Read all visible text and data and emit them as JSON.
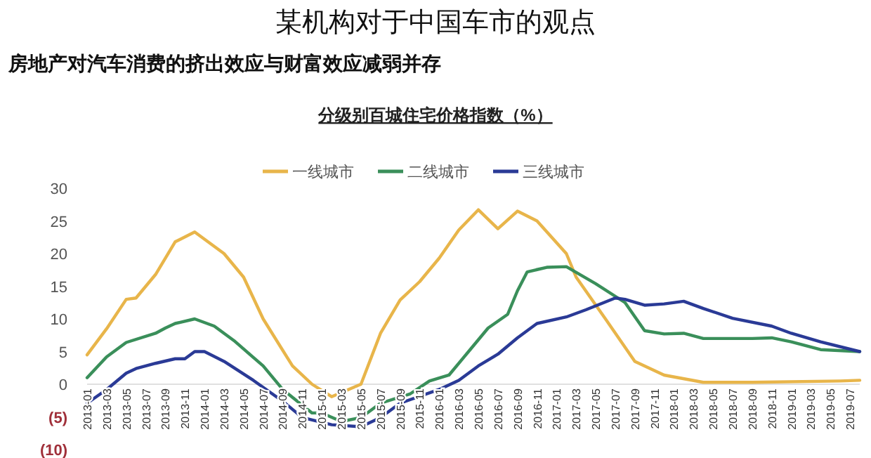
{
  "chart_data": {
    "type": "line",
    "title": "某机构对于中国车市的观点",
    "subtitle": "房地产对汽车消费的挤出效应与财富效应减弱并存",
    "annotations": [
      "分级别百城住宅价格指数（%）"
    ],
    "legend": "top",
    "grid": false,
    "marker": "none",
    "line_style": "solid",
    "xlim": [
      "2013-01",
      "2019-08"
    ],
    "xticks": [
      "2013-01",
      "2013-03",
      "2013-05",
      "2013-07",
      "2013-09",
      "2013-11",
      "2014-01",
      "2014-03",
      "2014-05",
      "2014-07",
      "2014-09",
      "2014-11",
      "2015-01",
      "2015-03",
      "2015-05",
      "2015-07",
      "2015-09",
      "2015-11",
      "2016-01",
      "2016-03",
      "2016-05",
      "2016-07",
      "2016-09",
      "2016-11",
      "2017-01",
      "2017-03",
      "2017-05",
      "2017-07",
      "2017-09",
      "2017-11",
      "2018-01",
      "2018-03",
      "2018-05",
      "2018-07",
      "2018-09",
      "2018-11",
      "2019-01",
      "2019-03",
      "2019-05",
      "2019-07"
    ],
    "ylim": [
      -10,
      30
    ],
    "yticks": [
      {
        "value": -10,
        "label": "(10)"
      },
      {
        "value": -5,
        "label": "(5)"
      },
      0,
      5,
      10,
      15,
      20,
      25,
      30
    ],
    "series": [
      {
        "name": "一线城市",
        "color": "#e8b54a",
        "x": [
          "2013-01",
          "2013-03",
          "2013-05",
          "2013-06",
          "2013-08",
          "2013-10",
          "2013-12",
          "2014-01",
          "2014-03",
          "2014-05",
          "2014-07",
          "2014-10",
          "2014-12",
          "2015-02",
          "2015-05",
          "2015-07",
          "2015-09",
          "2015-11",
          "2016-01",
          "2016-03",
          "2016-05",
          "2016-07",
          "2016-09",
          "2016-11",
          "2017-02",
          "2017-03",
          "2017-06",
          "2017-09",
          "2017-12",
          "2018-04",
          "2018-09",
          "2019-06",
          "2019-08"
        ],
        "values": [
          4.5,
          8.5,
          13,
          13.2,
          16.8,
          21.8,
          23.3,
          22.2,
          20,
          16.4,
          10,
          2.8,
          0,
          -1.9,
          0,
          7.8,
          12.9,
          15.7,
          19.3,
          23.6,
          26.7,
          23.8,
          26.5,
          25,
          20,
          16.4,
          10,
          3.5,
          1.4,
          0.3,
          0.3,
          0.5,
          0.6
        ]
      },
      {
        "name": "二线城市",
        "color": "#3a8f5a",
        "x": [
          "2013-01",
          "2013-03",
          "2013-05",
          "2013-08",
          "2013-09",
          "2013-10",
          "2013-12",
          "2014-02",
          "2014-04",
          "2014-07",
          "2014-09",
          "2014-12",
          "2015-01",
          "2015-03",
          "2015-05",
          "2015-07",
          "2015-10",
          "2015-12",
          "2016-02",
          "2016-04",
          "2016-06",
          "2016-08",
          "2016-09",
          "2016-10",
          "2016-12",
          "2017-02",
          "2017-05",
          "2017-08",
          "2017-10",
          "2017-12",
          "2018-02",
          "2018-04",
          "2018-09",
          "2018-11",
          "2019-01",
          "2019-04",
          "2019-08"
        ],
        "values": [
          1,
          4.2,
          6.4,
          7.8,
          8.6,
          9.3,
          10,
          8.9,
          6.7,
          2.8,
          -0.8,
          -4.4,
          -4.4,
          -5.7,
          -5.1,
          -2.9,
          -1.5,
          0.5,
          1.4,
          5,
          8.6,
          10.7,
          14.3,
          17.2,
          17.9,
          18,
          15.4,
          12.5,
          8.2,
          7.7,
          7.8,
          7,
          7,
          7.1,
          6.5,
          5.3,
          5
        ]
      },
      {
        "name": "三线城市",
        "color": "#2a3a96",
        "x": [
          "2013-01",
          "2013-03",
          "2013-05",
          "2013-06",
          "2013-08",
          "2013-10",
          "2013-11",
          "2013-12",
          "2014-01",
          "2014-03",
          "2014-06",
          "2014-09",
          "2014-11",
          "2015-02",
          "2015-05",
          "2015-07",
          "2015-09",
          "2016-01",
          "2016-03",
          "2016-05",
          "2016-07",
          "2016-09",
          "2016-11",
          "2017-02",
          "2017-04",
          "2017-07",
          "2017-08",
          "2017-10",
          "2017-12",
          "2018-02",
          "2018-04",
          "2018-07",
          "2018-11",
          "2019-01",
          "2019-04",
          "2019-08"
        ],
        "values": [
          -2.9,
          -0.8,
          1.7,
          2.4,
          3.2,
          3.9,
          3.9,
          5,
          5,
          3.5,
          0.6,
          -2.6,
          -5.1,
          -6.2,
          -6.5,
          -5.1,
          -2.9,
          -0.8,
          0.6,
          2.8,
          4.6,
          7.1,
          9.3,
          10.3,
          11.4,
          13.2,
          13,
          12.1,
          12.3,
          12.7,
          11.6,
          10.1,
          8.9,
          7.8,
          6.5,
          5
        ]
      }
    ]
  }
}
